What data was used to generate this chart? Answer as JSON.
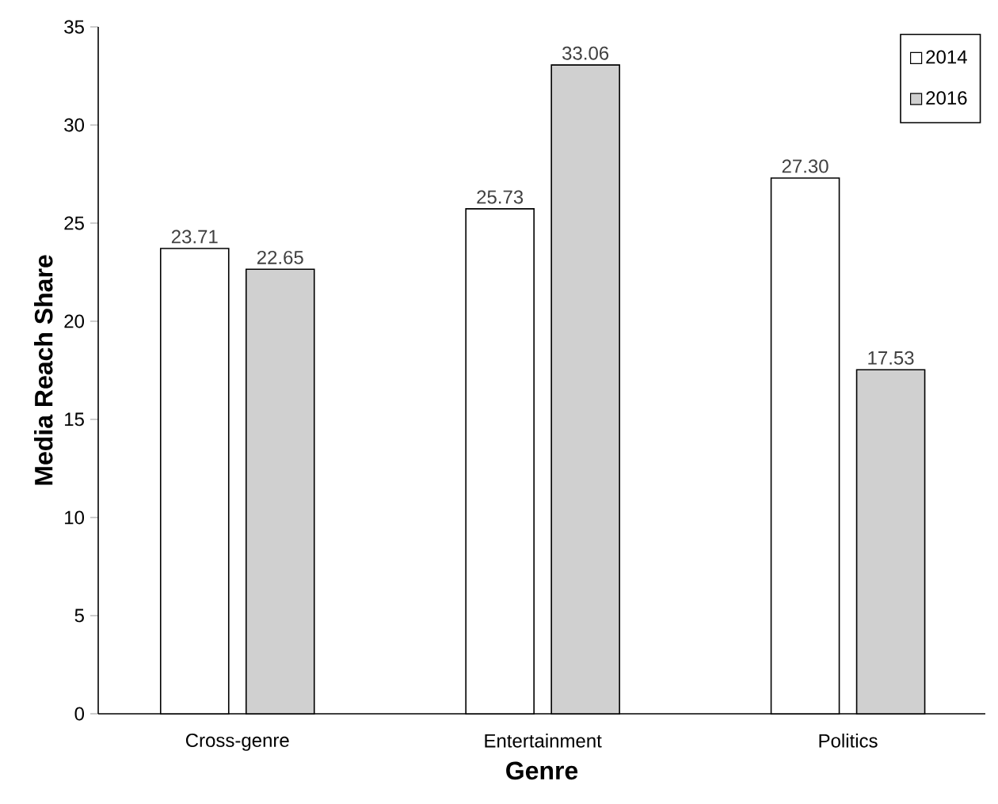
{
  "chart_data": {
    "type": "bar",
    "xlabel": "Genre",
    "ylabel": "Media Reach Share",
    "categories": [
      "Cross-genre",
      "Entertainment",
      "Politics"
    ],
    "series": [
      {
        "name": "2014",
        "color": "#ffffff",
        "values": [
          23.71,
          25.73,
          27.3
        ],
        "value_labels": [
          "23.71",
          "25.73",
          "27.30"
        ]
      },
      {
        "name": "2016",
        "color": "#d0d0d0",
        "values": [
          22.65,
          33.06,
          17.53
        ],
        "value_labels": [
          "22.65",
          "33.06",
          "17.53"
        ]
      }
    ],
    "ylim": [
      0,
      35
    ],
    "yticks": [
      0,
      5,
      10,
      15,
      20,
      25,
      30,
      35
    ],
    "legend": "top right"
  }
}
